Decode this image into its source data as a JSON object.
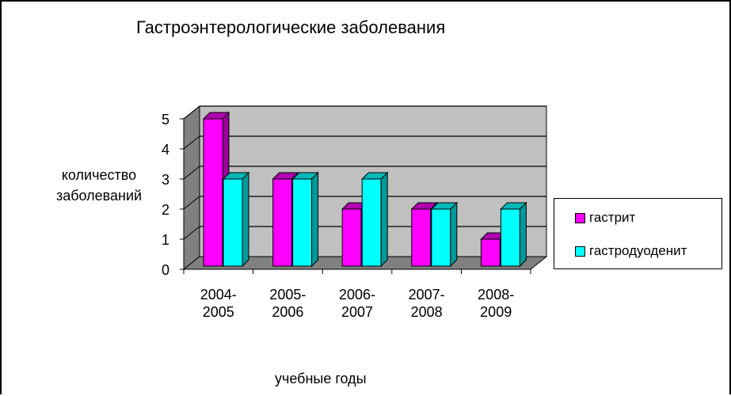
{
  "chart_data": {
    "type": "bar",
    "title": "Гастроэнтерологические заболевания",
    "ylabel_lines": [
      "количество",
      "заболеваний"
    ],
    "xlabel": "учебные годы",
    "categories": [
      [
        "2004-",
        "2005"
      ],
      [
        "2005-",
        "2006"
      ],
      [
        "2006-",
        "2007"
      ],
      [
        "2007-",
        "2008"
      ],
      [
        "2008-",
        "2009"
      ]
    ],
    "y_ticks": [
      "0",
      "1",
      "2",
      "3",
      "4",
      "5"
    ],
    "ylim": [
      0,
      5
    ],
    "grid": true,
    "legend_position": "right",
    "series": [
      {
        "name": "гастрит",
        "values": [
          5,
          3,
          2,
          2,
          1
        ],
        "color": "#ff00ff",
        "side_color": "#9a009a",
        "top_color": "#b000b0"
      },
      {
        "name": "гастродуоденит",
        "values": [
          3,
          3,
          3,
          2,
          2
        ],
        "color": "#00ffff",
        "side_color": "#009999",
        "top_color": "#00b8b8"
      }
    ],
    "background": "#c0c0c0"
  }
}
